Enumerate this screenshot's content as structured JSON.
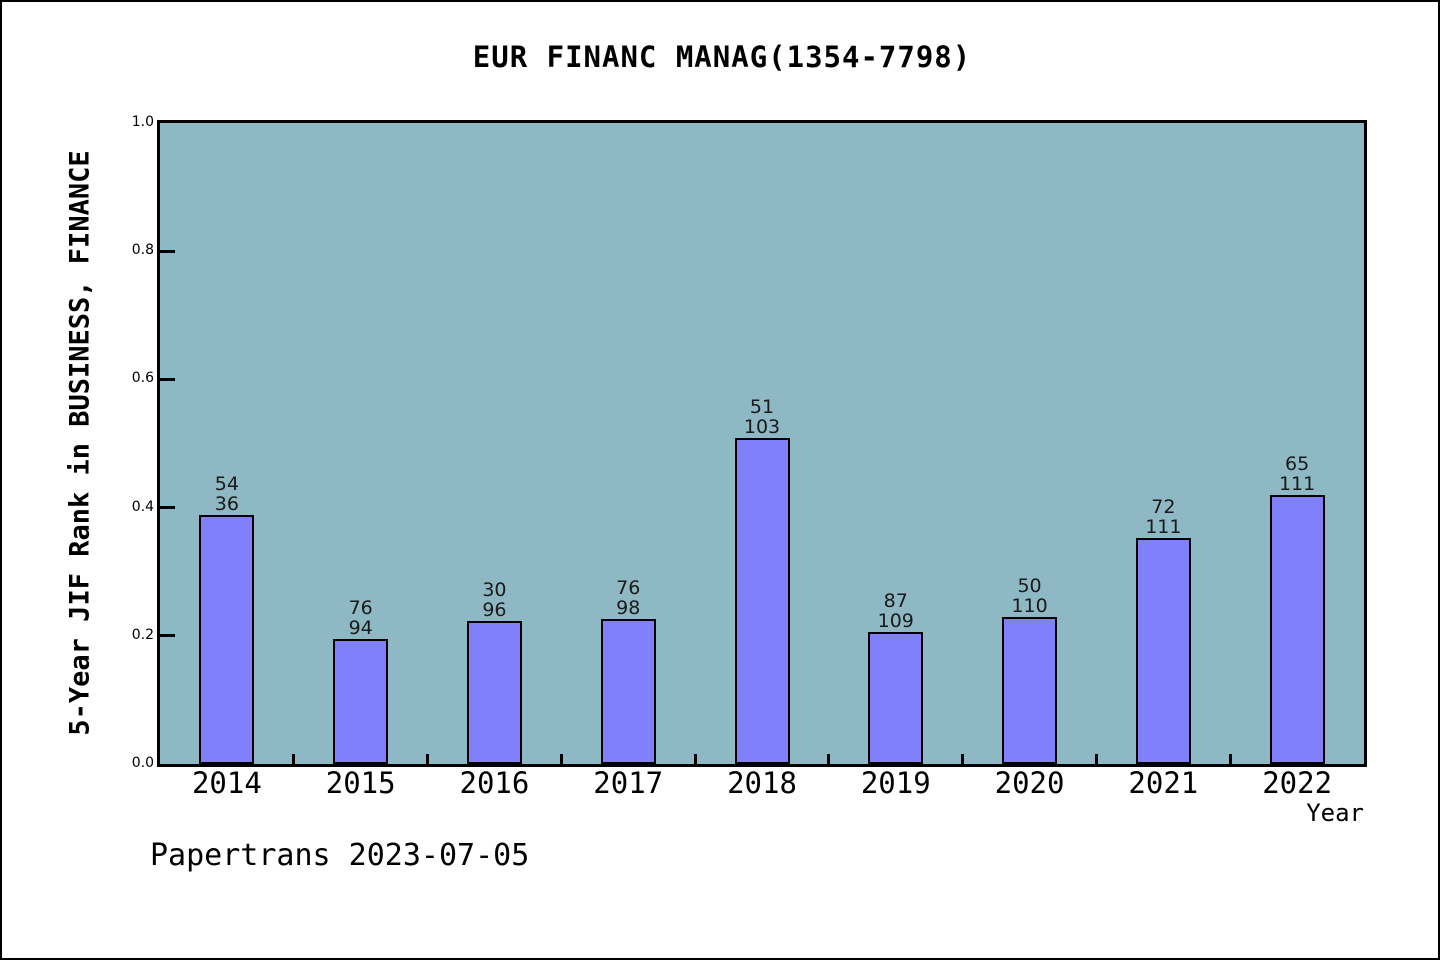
{
  "figure": {
    "title": "EUR FINANC MANAG(1354-7798)",
    "footer": "Papertrans 2023-07-05"
  },
  "chart_data": {
    "type": "bar",
    "title": "EUR FINANC MANAG(1354-7798)",
    "xlabel": "Year",
    "ylabel": "5-Year JIF Rank in BUSINESS, FINANCE",
    "categories": [
      "2014",
      "2015",
      "2016",
      "2017",
      "2018",
      "2019",
      "2020",
      "2021",
      "2022"
    ],
    "values": [
      0.388,
      0.195,
      0.223,
      0.227,
      0.508,
      0.206,
      0.23,
      0.352,
      0.419
    ],
    "bar_labels": [
      [
        "54",
        "36"
      ],
      [
        "76",
        "94"
      ],
      [
        "30",
        "96"
      ],
      [
        "76",
        "98"
      ],
      [
        "51",
        "103"
      ],
      [
        "87",
        "109"
      ],
      [
        "50",
        "110"
      ],
      [
        "72",
        "111"
      ],
      [
        "65",
        "111"
      ]
    ],
    "ylim": [
      0.0,
      1.0
    ],
    "yticks": [
      0.0,
      0.2,
      0.4,
      0.6,
      0.8,
      1.0
    ],
    "ytick_labels": [
      "0.0",
      "0.2",
      "0.4",
      "0.6",
      "0.8",
      "1.0"
    ],
    "grid": false,
    "legend": false,
    "colors": {
      "bar_fill": "#8080FA",
      "bar_edge": "#000000",
      "plot_bg": "#8DB8C4",
      "figure_bg": "#FFFFFF",
      "frame": "#000000"
    }
  }
}
